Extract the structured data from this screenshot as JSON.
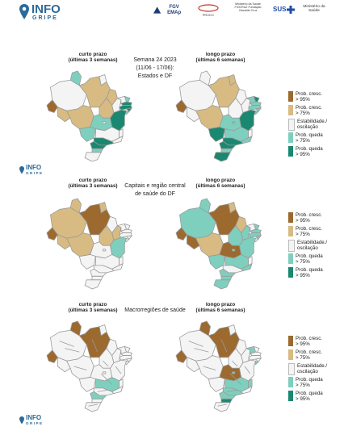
{
  "header": {
    "logo_title": "INFO",
    "logo_sub": "GRIPE",
    "partners": [
      "FGV EMAp",
      "PROCC",
      "Ministério da Saúde FIOCRUZ Fundação Oswaldo Cruz",
      "SUS",
      "Ministério da Saúde"
    ]
  },
  "panels": [
    {
      "left_caption": [
        "curto prazo",
        "(últimas 3 semanas)"
      ],
      "right_caption": [
        "longo prazo",
        "(últimas 6 semanas)"
      ],
      "center_title": [
        "Semana 24 2023",
        "(11/06 - 17/06):",
        "Estados e DF"
      ]
    },
    {
      "left_caption": [
        "curto prazo",
        "(últimas 3 semanas)"
      ],
      "right_caption": [
        "longo prazo",
        "(últimas 6 semanas)"
      ],
      "center_title": [
        "Capitais e região central",
        "de saúde do DF"
      ]
    },
    {
      "left_caption": [
        "curto prazo",
        "(últimas 3 semanas)"
      ],
      "right_caption": [
        "longo prazo",
        "(últimas 6 semanas)"
      ],
      "center_title": [
        "Macrorregiões de saúde"
      ]
    }
  ],
  "legend": [
    {
      "label": [
        "Prob. cresc.",
        "> 95%"
      ],
      "color": "#9c6a2f"
    },
    {
      "label": [
        "Prob. cresc.",
        "> 75%"
      ],
      "color": "#d8bb82"
    },
    {
      "label": [
        "Estabilidade./",
        "oscilação"
      ],
      "color": "#f4f4f4"
    },
    {
      "label": [
        "Prob. queda",
        "> 75%"
      ],
      "color": "#7fcfbf"
    },
    {
      "label": [
        "Prob. queda",
        "> 95%"
      ],
      "color": "#1a8870"
    }
  ],
  "footer_logo": {
    "title": "INFO",
    "sub": "GRIPE"
  }
}
